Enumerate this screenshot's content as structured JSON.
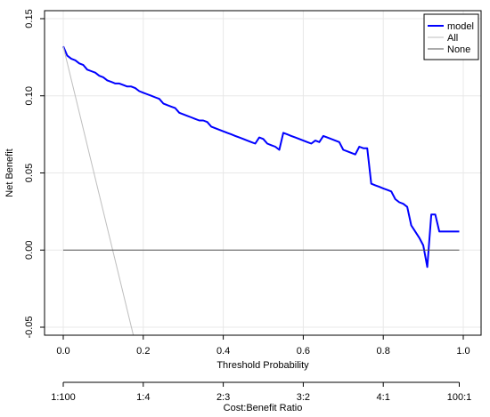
{
  "chart_data": {
    "type": "line",
    "xlabel": "Threshold Probability",
    "ylabel": "Net Benefit",
    "secondary_xlabel": "Cost:Benefit Ratio",
    "xlim": [
      0.0,
      1.0
    ],
    "ylim": [
      -0.05,
      0.15
    ],
    "x_ticks": [
      "0.0",
      "0.2",
      "0.4",
      "0.6",
      "0.8",
      "1.0"
    ],
    "y_ticks": [
      "-0.05",
      "0.00",
      "0.05",
      "0.10",
      "0.15"
    ],
    "secondary_ticks": [
      {
        "x": 0.0,
        "label": "1:100"
      },
      {
        "x": 0.2,
        "label": "1:4"
      },
      {
        "x": 0.4,
        "label": "2:3"
      },
      {
        "x": 0.6,
        "label": "3:2"
      },
      {
        "x": 0.8,
        "label": "4:1"
      },
      {
        "x": 0.99,
        "label": "100:1"
      }
    ],
    "grid": true,
    "legend_position": "top-right",
    "colors": {
      "model": "#0000ff",
      "all": "#bebebe",
      "none": "#555555",
      "grid": "#e8e8e8"
    },
    "series": [
      {
        "name": "model",
        "x": [
          0.0,
          0.01,
          0.02,
          0.03,
          0.04,
          0.05,
          0.06,
          0.07,
          0.08,
          0.09,
          0.1,
          0.11,
          0.12,
          0.13,
          0.14,
          0.15,
          0.16,
          0.17,
          0.18,
          0.19,
          0.2,
          0.21,
          0.22,
          0.23,
          0.24,
          0.25,
          0.26,
          0.27,
          0.28,
          0.29,
          0.3,
          0.31,
          0.32,
          0.33,
          0.34,
          0.35,
          0.36,
          0.37,
          0.38,
          0.39,
          0.4,
          0.41,
          0.42,
          0.43,
          0.44,
          0.45,
          0.46,
          0.47,
          0.48,
          0.49,
          0.5,
          0.51,
          0.52,
          0.53,
          0.54,
          0.55,
          0.56,
          0.57,
          0.58,
          0.59,
          0.6,
          0.61,
          0.62,
          0.63,
          0.64,
          0.65,
          0.66,
          0.67,
          0.68,
          0.69,
          0.7,
          0.71,
          0.72,
          0.73,
          0.74,
          0.75,
          0.76,
          0.77,
          0.78,
          0.79,
          0.8,
          0.81,
          0.82,
          0.83,
          0.84,
          0.85,
          0.86,
          0.87,
          0.88,
          0.89,
          0.9,
          0.91,
          0.92,
          0.93,
          0.94,
          0.95,
          0.96,
          0.97,
          0.98,
          0.99
        ],
        "y": [
          0.132,
          0.126,
          0.124,
          0.123,
          0.121,
          0.12,
          0.117,
          0.116,
          0.115,
          0.113,
          0.112,
          0.11,
          0.109,
          0.108,
          0.108,
          0.107,
          0.106,
          0.106,
          0.105,
          0.103,
          0.102,
          0.101,
          0.1,
          0.099,
          0.098,
          0.095,
          0.094,
          0.093,
          0.092,
          0.089,
          0.088,
          0.087,
          0.086,
          0.085,
          0.084,
          0.084,
          0.083,
          0.08,
          0.079,
          0.078,
          0.077,
          0.076,
          0.075,
          0.074,
          0.073,
          0.072,
          0.071,
          0.07,
          0.069,
          0.073,
          0.072,
          0.069,
          0.068,
          0.067,
          0.065,
          0.076,
          0.075,
          0.074,
          0.073,
          0.072,
          0.071,
          0.07,
          0.069,
          0.071,
          0.07,
          0.074,
          0.073,
          0.072,
          0.071,
          0.07,
          0.065,
          0.064,
          0.063,
          0.062,
          0.067,
          0.066,
          0.066,
          0.043,
          0.042,
          0.041,
          0.04,
          0.039,
          0.038,
          0.033,
          0.031,
          0.03,
          0.028,
          0.016,
          0.012,
          0.008,
          0.003,
          -0.011,
          0.023,
          0.023,
          0.012,
          0.012,
          0.012,
          0.012,
          0.012,
          0.012
        ]
      },
      {
        "name": "All",
        "x": [
          0.0,
          0.175
        ],
        "y": [
          0.132,
          -0.055
        ]
      },
      {
        "name": "None",
        "x": [
          0.0,
          0.99
        ],
        "y": [
          0.0,
          0.0
        ]
      }
    ]
  }
}
